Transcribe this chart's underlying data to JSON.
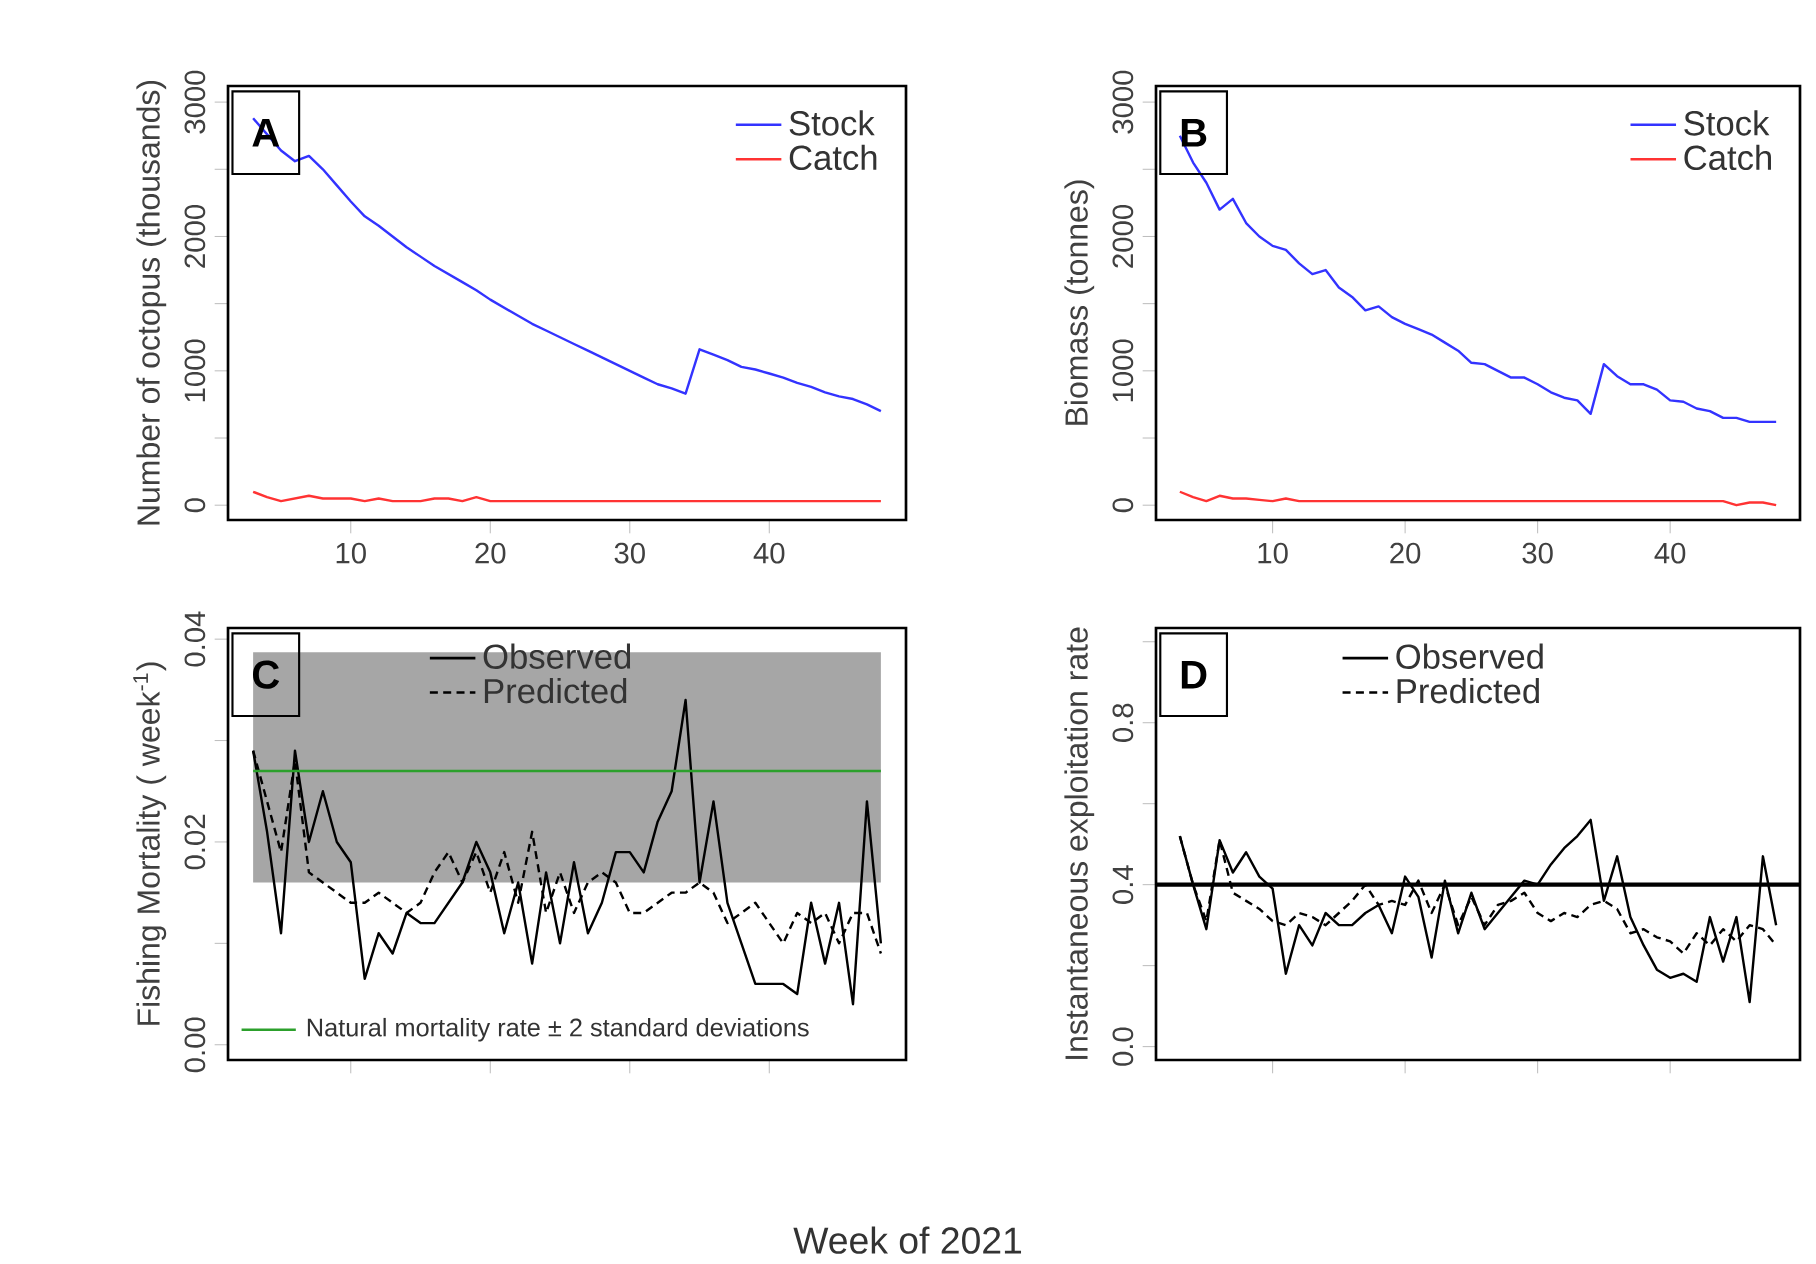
{
  "chart_data": [
    {
      "type": "line",
      "ylabel": "Number of octopus (thousands)",
      "annotations": [
        "A"
      ],
      "x": [
        3,
        4,
        5,
        6,
        7,
        8,
        9,
        10,
        11,
        12,
        13,
        14,
        15,
        16,
        17,
        18,
        19,
        20,
        21,
        22,
        23,
        24,
        25,
        26,
        27,
        28,
        29,
        30,
        31,
        32,
        33,
        34,
        35,
        36,
        37,
        38,
        39,
        40,
        41,
        42,
        43,
        44,
        45,
        46,
        47,
        48
      ],
      "series": [
        {
          "name": "Stock",
          "color": "#3333ff",
          "values": [
            2880,
            2760,
            2640,
            2560,
            2600,
            2500,
            2380,
            2260,
            2150,
            2080,
            2000,
            1920,
            1850,
            1780,
            1720,
            1660,
            1600,
            1530,
            1470,
            1410,
            1350,
            1300,
            1250,
            1200,
            1150,
            1100,
            1050,
            1000,
            950,
            900,
            870,
            830,
            1160,
            1120,
            1080,
            1030,
            1010,
            980,
            950,
            910,
            880,
            840,
            810,
            790,
            750,
            700
          ]
        },
        {
          "name": "Catch",
          "color": "#ff3333",
          "values": [
            100,
            60,
            30,
            50,
            70,
            50,
            50,
            50,
            30,
            50,
            30,
            30,
            30,
            50,
            50,
            30,
            60,
            30,
            30,
            30,
            30,
            30,
            30,
            30,
            30,
            30,
            30,
            30,
            30,
            30,
            30,
            30,
            30,
            30,
            30,
            30,
            30,
            30,
            30,
            30,
            30,
            30,
            30,
            30,
            30,
            30
          ]
        }
      ],
      "xlim": [
        1.2,
        49.8
      ],
      "xticks": [
        10,
        20,
        30,
        40
      ],
      "ylim": [
        -110,
        3120
      ],
      "yticks": [
        0,
        {
          "value": 500,
          "label": null
        },
        1000,
        {
          "value": 1500,
          "label": null
        },
        2000,
        {
          "value": 2500,
          "label": null
        },
        3000
      ],
      "legend": "top right"
    },
    {
      "type": "line",
      "ylabel": "Biomass (tonnes)",
      "annotations": [
        "B"
      ],
      "x": [
        3,
        4,
        5,
        6,
        7,
        8,
        9,
        10,
        11,
        12,
        13,
        14,
        15,
        16,
        17,
        18,
        19,
        20,
        21,
        22,
        23,
        24,
        25,
        26,
        27,
        28,
        29,
        30,
        31,
        32,
        33,
        34,
        35,
        36,
        37,
        38,
        39,
        40,
        41,
        42,
        43,
        44,
        45,
        46,
        47,
        48
      ],
      "series": [
        {
          "name": "Stock",
          "color": "#3333ff",
          "values": [
            2750,
            2550,
            2400,
            2200,
            2280,
            2100,
            2000,
            1930,
            1900,
            1800,
            1720,
            1750,
            1620,
            1550,
            1450,
            1480,
            1400,
            1350,
            1310,
            1270,
            1210,
            1150,
            1060,
            1050,
            1000,
            950,
            950,
            900,
            840,
            800,
            780,
            680,
            1050,
            960,
            900,
            900,
            860,
            780,
            770,
            720,
            700,
            650,
            650,
            620,
            620,
            620
          ]
        },
        {
          "name": "Catch",
          "color": "#ff3333",
          "values": [
            100,
            60,
            30,
            70,
            50,
            50,
            40,
            30,
            50,
            30,
            30,
            30,
            30,
            30,
            30,
            30,
            30,
            30,
            30,
            30,
            30,
            30,
            30,
            30,
            30,
            30,
            30,
            30,
            30,
            30,
            30,
            30,
            30,
            30,
            30,
            30,
            30,
            30,
            30,
            30,
            30,
            30,
            0,
            20,
            20,
            0
          ]
        }
      ],
      "xlim": [
        1.2,
        49.8
      ],
      "xticks": [
        10,
        20,
        30,
        40
      ],
      "ylim": [
        -110,
        3120
      ],
      "yticks": [
        0,
        {
          "value": 500,
          "label": null
        },
        1000,
        {
          "value": 1500,
          "label": null
        },
        2000,
        {
          "value": 2500,
          "label": null
        },
        3000
      ],
      "legend": "top right"
    },
    {
      "type": "line",
      "ylabel": "Fishing Mortality ( week$^{-1}$)",
      "xlabel": "Week of 2021",
      "annotations": [
        "C"
      ],
      "x": [
        3,
        4,
        5,
        6,
        7,
        8,
        9,
        10,
        11,
        12,
        13,
        14,
        15,
        16,
        17,
        18,
        19,
        20,
        21,
        22,
        23,
        24,
        25,
        26,
        27,
        28,
        29,
        30,
        31,
        32,
        33,
        34,
        35,
        36,
        37,
        38,
        39,
        40,
        41,
        42,
        43,
        44,
        45,
        46,
        47,
        48
      ],
      "series": [
        {
          "name": "Observed",
          "color": "#000000",
          "line_style": "solid",
          "values": [
            0.029,
            0.021,
            0.011,
            0.029,
            0.02,
            0.025,
            0.02,
            0.018,
            0.0065,
            0.011,
            0.009,
            0.013,
            0.012,
            0.012,
            0.014,
            0.016,
            0.02,
            0.017,
            0.011,
            0.016,
            0.008,
            0.017,
            0.01,
            0.018,
            0.011,
            0.014,
            0.019,
            0.019,
            0.017,
            0.022,
            0.025,
            0.034,
            0.016,
            0.024,
            0.014,
            0.01,
            0.006,
            0.006,
            0.006,
            0.005,
            0.014,
            0.008,
            0.014,
            0.004,
            0.024,
            0.01
          ]
        },
        {
          "name": "Predicted",
          "color": "#000000",
          "line_style": "dashed",
          "values": [
            0.029,
            0.024,
            0.019,
            0.028,
            0.017,
            0.016,
            0.015,
            0.014,
            0.014,
            0.015,
            0.014,
            0.013,
            0.014,
            0.017,
            0.019,
            0.016,
            0.019,
            0.015,
            0.019,
            0.014,
            0.021,
            0.013,
            0.017,
            0.013,
            0.016,
            0.017,
            0.016,
            0.013,
            0.013,
            0.014,
            0.015,
            0.015,
            0.016,
            0.015,
            0.012,
            0.013,
            0.014,
            0.012,
            0.01,
            0.013,
            0.012,
            0.013,
            0.01,
            0.013,
            0.013,
            0.009
          ]
        }
      ],
      "bands": [
        {
          "axis": "y",
          "from": 0.016,
          "to": 0.0387,
          "color": "#a6a6a6"
        }
      ],
      "ref_lines": [
        {
          "axis": "y",
          "value": 0.027,
          "label": "Natural mortality rate ± 2 standard deviations",
          "color": "#2ca02c"
        }
      ],
      "xlim": [
        1.2,
        49.8
      ],
      "xticks": [
        10,
        20,
        30,
        40
      ],
      "ylim": [
        -0.0015,
        0.0411
      ],
      "yticks": [
        {
          "value": 0,
          "label": "0.00"
        },
        {
          "value": 0.01,
          "label": null
        },
        {
          "value": 0.02,
          "label": "0.02"
        },
        {
          "value": 0.03,
          "label": null
        },
        {
          "value": 0.04,
          "label": "0.04"
        }
      ],
      "tick_labels": "y",
      "legend": "top"
    },
    {
      "type": "line",
      "ylabel": "Instantaneous exploitation rate",
      "annotations": [
        "D"
      ],
      "x": [
        3,
        4,
        5,
        6,
        7,
        8,
        9,
        10,
        11,
        12,
        13,
        14,
        15,
        16,
        17,
        18,
        19,
        20,
        21,
        22,
        23,
        24,
        25,
        26,
        27,
        28,
        29,
        30,
        31,
        32,
        33,
        34,
        35,
        36,
        37,
        38,
        39,
        40,
        41,
        42,
        43,
        44,
        45,
        46,
        47,
        48
      ],
      "series": [
        {
          "name": "Observed",
          "color": "#000000",
          "line_style": "solid",
          "values": [
            0.52,
            0.4,
            0.29,
            0.51,
            0.43,
            0.48,
            0.42,
            0.39,
            0.18,
            0.3,
            0.25,
            0.33,
            0.3,
            0.3,
            0.33,
            0.35,
            0.28,
            0.42,
            0.37,
            0.22,
            0.41,
            0.28,
            0.38,
            0.29,
            0.33,
            0.37,
            0.41,
            0.4,
            0.45,
            0.49,
            0.52,
            0.56,
            0.36,
            0.47,
            0.32,
            0.25,
            0.19,
            0.17,
            0.18,
            0.16,
            0.32,
            0.21,
            0.32,
            0.11,
            0.47,
            0.3
          ]
        },
        {
          "name": "Predicted",
          "color": "#000000",
          "line_style": "dashed",
          "values": [
            0.52,
            0.4,
            0.31,
            0.51,
            0.38,
            0.36,
            0.34,
            0.31,
            0.3,
            0.33,
            0.32,
            0.3,
            0.33,
            0.36,
            0.4,
            0.35,
            0.36,
            0.35,
            0.41,
            0.33,
            0.4,
            0.3,
            0.37,
            0.3,
            0.35,
            0.36,
            0.38,
            0.33,
            0.31,
            0.33,
            0.32,
            0.35,
            0.36,
            0.34,
            0.28,
            0.29,
            0.27,
            0.26,
            0.23,
            0.28,
            0.25,
            0.29,
            0.26,
            0.3,
            0.29,
            0.25
          ]
        }
      ],
      "ref_lines": [
        {
          "axis": "y",
          "value": 0.4,
          "color": "#000000"
        }
      ],
      "xlim": [
        1.2,
        49.8
      ],
      "xticks": [
        10,
        20,
        30,
        40
      ],
      "ylim": [
        -0.033,
        1.034
      ],
      "yticks": [
        {
          "value": 0,
          "label": "0.0"
        },
        {
          "value": 0.2,
          "label": null
        },
        {
          "value": 0.4,
          "label": "0.4"
        },
        {
          "value": 0.6,
          "label": null
        },
        {
          "value": 0.8,
          "label": "0.8"
        },
        {
          "value": 1.0,
          "label": null
        }
      ],
      "tick_labels": "y",
      "legend": "top"
    }
  ]
}
